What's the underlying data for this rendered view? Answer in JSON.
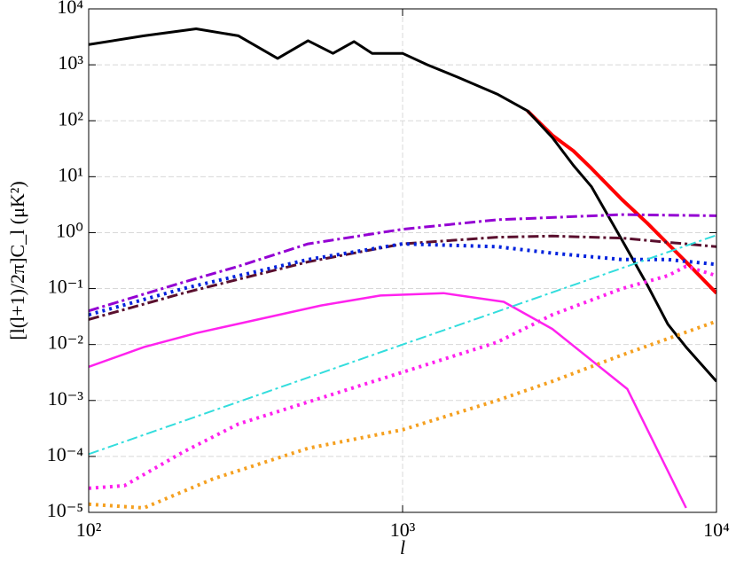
{
  "chart_data": {
    "type": "line",
    "xlabel": "l",
    "ylabel": "[l(l+1)/2π]C_l (μK²)",
    "xscale": "log",
    "yscale": "log",
    "grid": true,
    "xlim": [
      100,
      10000
    ],
    "ylim": [
      1e-05,
      10000
    ],
    "xticks": [
      {
        "value": 100,
        "label": "10²"
      },
      {
        "value": 1000,
        "label": "10³"
      },
      {
        "value": 10000,
        "label": "10⁴"
      }
    ],
    "yticks": [
      {
        "value": 1e-05,
        "label": "10⁻⁵"
      },
      {
        "value": 0.0001,
        "label": "10⁻⁴"
      },
      {
        "value": 0.001,
        "label": "10⁻³"
      },
      {
        "value": 0.01,
        "label": "10⁻²"
      },
      {
        "value": 0.1,
        "label": "10⁻¹"
      },
      {
        "value": 1,
        "label": "10⁰"
      },
      {
        "value": 10,
        "label": "10¹"
      },
      {
        "value": 100,
        "label": "10²"
      },
      {
        "value": 1000,
        "label": "10³"
      },
      {
        "value": 10000,
        "label": "10⁴"
      }
    ],
    "series": [
      {
        "color": "#ff0000",
        "style": "solid",
        "width": 4,
        "x": [
          2500,
          3000,
          3500,
          4000,
          5000,
          6000,
          7000,
          8000,
          10000
        ],
        "values": [
          150,
          55,
          29,
          14,
          3.9,
          1.5,
          0.63,
          0.3,
          0.083
        ]
      },
      {
        "color": "#000000",
        "style": "solid",
        "width": 3,
        "x": [
          100,
          150,
          220,
          300,
          400,
          500,
          600,
          700,
          800,
          1000,
          1200,
          1500,
          2000,
          2500,
          3000,
          3500,
          4000,
          5000,
          6000,
          7000,
          8000,
          10000
        ],
        "values": [
          2300,
          3300,
          4400,
          3300,
          1300,
          2700,
          1600,
          2600,
          1600,
          1600,
          1000,
          600,
          300,
          150,
          50,
          16,
          6.6,
          0.74,
          0.12,
          0.023,
          0.009,
          0.0022
        ]
      },
      {
        "color": "#9400d3",
        "style": "dashdot",
        "width": 3,
        "x": [
          100,
          200,
          300,
          500,
          1000,
          2000,
          5000,
          10000
        ],
        "values": [
          0.04,
          0.13,
          0.25,
          0.63,
          1.15,
          1.7,
          2.1,
          2.0
        ]
      },
      {
        "color": "#5a0f2e",
        "style": "dashdot",
        "width": 3,
        "x": [
          100,
          200,
          500,
          1000,
          2000,
          3000,
          5000,
          10000
        ],
        "values": [
          0.028,
          0.083,
          0.3,
          0.63,
          0.83,
          0.87,
          0.8,
          0.56
        ]
      },
      {
        "color": "#0022dd",
        "style": "dotted",
        "width": 4,
        "x": [
          100,
          200,
          500,
          1000,
          2000,
          3000,
          5000,
          7000,
          10000
        ],
        "values": [
          0.034,
          0.1,
          0.33,
          0.63,
          0.56,
          0.43,
          0.33,
          0.33,
          0.27
        ]
      },
      {
        "color": "#ff22ee",
        "style": "solid",
        "width": 2.5,
        "x": [
          100,
          150,
          220,
          550,
          850,
          1350,
          2100,
          3000,
          5200,
          8000
        ],
        "values": [
          0.004,
          0.009,
          0.016,
          0.05,
          0.075,
          0.083,
          0.058,
          0.019,
          0.0016,
          1.2e-05
        ]
      },
      {
        "color": "#33dddd",
        "style": "dashdot",
        "width": 2,
        "x": [
          100,
          1000,
          10000
        ],
        "values": [
          0.00011,
          0.01,
          0.9
        ]
      },
      {
        "color": "#ff22ee",
        "style": "dotted",
        "width": 4,
        "x": [
          100,
          130,
          200,
          300,
          1000,
          2000,
          3000,
          5000,
          7000,
          8000,
          10000
        ],
        "values": [
          2.7e-05,
          3e-05,
          0.00012,
          0.00038,
          0.0032,
          0.011,
          0.034,
          0.1,
          0.17,
          0.25,
          0.17
        ]
      },
      {
        "color": "#f5a020",
        "style": "dotted",
        "width": 4,
        "x": [
          100,
          150,
          250,
          500,
          1000,
          2000,
          3000,
          5000,
          10000
        ],
        "values": [
          1.4e-05,
          1.2e-05,
          4e-05,
          0.00014,
          0.0003,
          0.001,
          0.0022,
          0.0065,
          0.026
        ]
      }
    ]
  }
}
